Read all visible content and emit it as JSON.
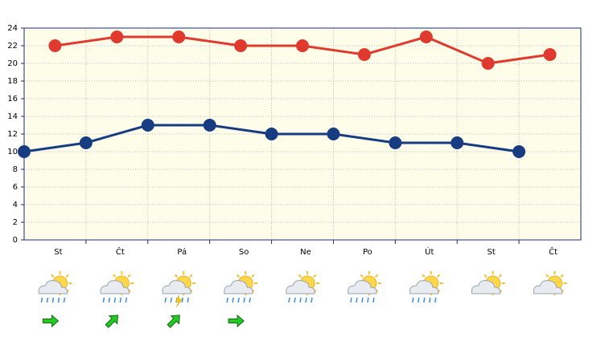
{
  "chart_data": {
    "type": "line",
    "categories": [
      "St",
      "Čt",
      "Pá",
      "So",
      "Ne",
      "Po",
      "Út",
      "St",
      "Čt"
    ],
    "series": [
      {
        "color": "#e03a2e",
        "values": [
          22,
          23,
          23,
          22,
          22,
          21,
          23,
          20,
          21
        ]
      },
      {
        "color": "#183c82",
        "values": [
          10,
          11,
          13,
          13,
          12,
          12,
          11,
          11,
          10
        ]
      }
    ],
    "ylim": [
      0,
      24
    ],
    "yticks": [
      0,
      2,
      4,
      6,
      8,
      10,
      12,
      14,
      16,
      18,
      20,
      22,
      24
    ],
    "grid": true
  }
}
